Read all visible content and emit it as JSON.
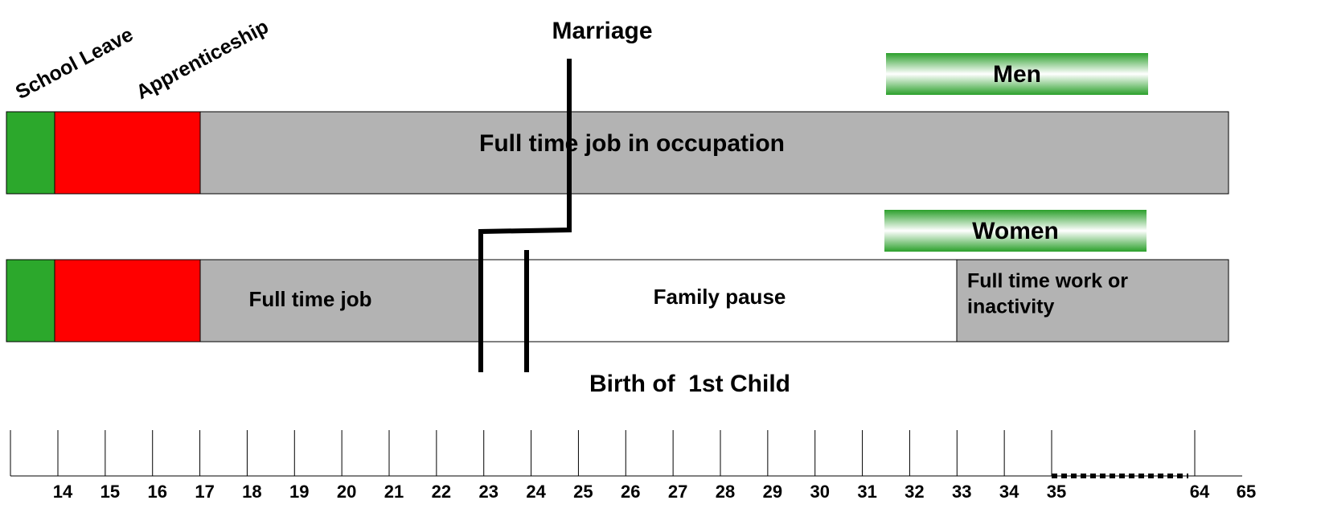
{
  "labels": {
    "school_leave": "School Leave",
    "apprenticeship": "Apprenticeship",
    "marriage": "Marriage",
    "birth": "Birth of  1st Child"
  },
  "men": {
    "title": "Men",
    "bar": "Full time job in occupation"
  },
  "women": {
    "title": "Women",
    "full_time_job": "Full time job",
    "family_pause": "Family pause",
    "later": [
      "Full time work or",
      "inactivity"
    ]
  },
  "axis": {
    "labels": [
      "14",
      "15",
      "16",
      "17",
      "18",
      "19",
      "20",
      "21",
      "22",
      "23",
      "24",
      "25",
      "26",
      "27",
      "28",
      "29",
      "30",
      "31",
      "32",
      "33",
      "34",
      "35",
      "64",
      "65"
    ]
  }
}
